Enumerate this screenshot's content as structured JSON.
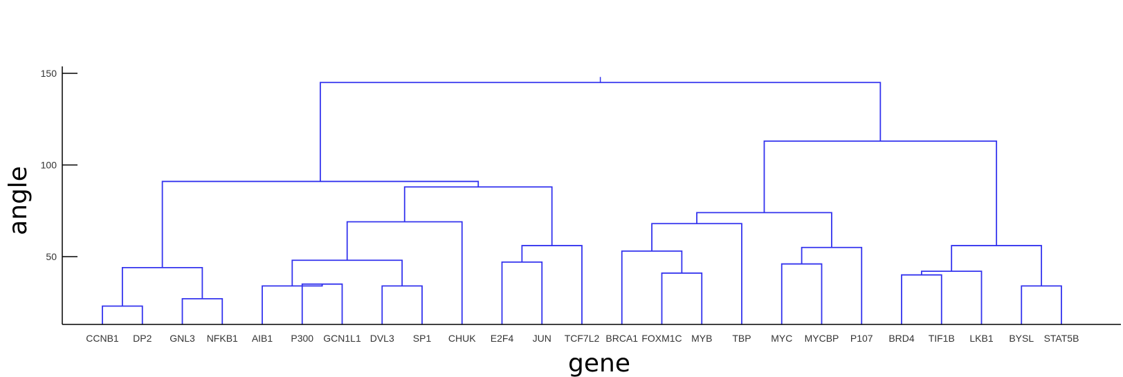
{
  "chart_data": {
    "type": "dendrogram",
    "title": "",
    "xlabel": "gene",
    "ylabel": "angle",
    "ylim": [
      13,
      150
    ],
    "yticks": [
      50,
      100,
      150
    ],
    "leaves": [
      "CCNB1",
      "DP2",
      "GNL3",
      "NFKB1",
      "AIB1",
      "P300",
      "GCN1L1",
      "DVL3",
      "SP1",
      "CHUK",
      "E2F4",
      "JUN",
      "TCF7L2",
      "BRCA1",
      "FOXM1C",
      "MYB",
      "TBP",
      "MYC",
      "MYCBP",
      "P107",
      "BRD4",
      "TIF1B",
      "LKB1",
      "BYSL",
      "STAT5B"
    ],
    "merges": [
      {
        "left": "CCNB1",
        "right": "DP2",
        "height": 23
      },
      {
        "left": "GNL3",
        "right": "NFKB1",
        "height": 27
      },
      {
        "left": 0,
        "right": 1,
        "height": 44
      },
      {
        "left": "P300",
        "right": "GCN1L1",
        "height": 35
      },
      {
        "left": "AIB1",
        "right": 3,
        "height": 34
      },
      {
        "left": "DVL3",
        "right": "SP1",
        "height": 34
      },
      {
        "left": 4,
        "right": 5,
        "height": 48
      },
      {
        "left": 6,
        "right": "CHUK",
        "height": 69
      },
      {
        "left": "E2F4",
        "right": "JUN",
        "height": 47
      },
      {
        "left": 8,
        "right": "TCF7L2",
        "height": 56
      },
      {
        "left": 7,
        "right": 9,
        "height": 88
      },
      {
        "left": 2,
        "right": 10,
        "height": 91
      },
      {
        "left": "FOXM1C",
        "right": "MYB",
        "height": 41
      },
      {
        "left": "BRCA1",
        "right": 12,
        "height": 53
      },
      {
        "left": 13,
        "right": "TBP",
        "height": 68
      },
      {
        "left": "MYC",
        "right": "MYCBP",
        "height": 46
      },
      {
        "left": 15,
        "right": "P107",
        "height": 55
      },
      {
        "left": 14,
        "right": 16,
        "height": 74
      },
      {
        "left": "BRD4",
        "right": "TIF1B",
        "height": 40
      },
      {
        "left": 18,
        "right": "LKB1",
        "height": 42
      },
      {
        "left": "BYSL",
        "right": "STAT5B",
        "height": 34
      },
      {
        "left": 19,
        "right": 20,
        "height": 56
      },
      {
        "left": 17,
        "right": 21,
        "height": 113
      },
      {
        "left": 11,
        "right": 22,
        "height": 145
      }
    ],
    "grid": false,
    "link_color": "#3333ee"
  }
}
